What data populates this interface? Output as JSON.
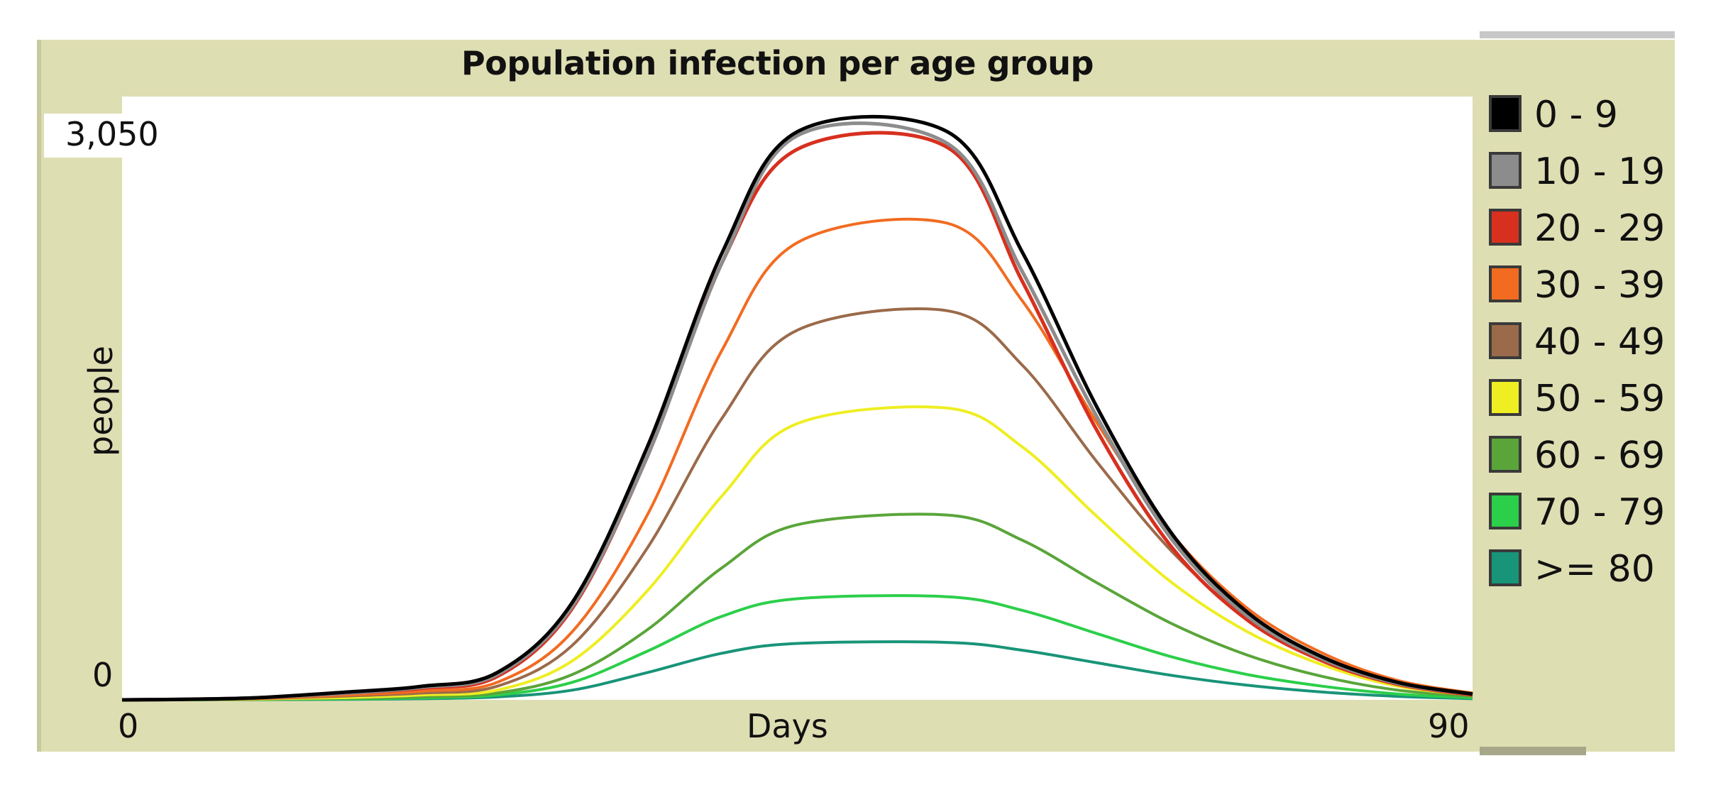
{
  "chart_data": {
    "type": "line",
    "title": "Population infection per age group",
    "xlabel": "Days",
    "ylabel": "people",
    "xlim": [
      0,
      90
    ],
    "ylim": [
      0,
      3050
    ],
    "x_tick_labels": [
      "0",
      "90"
    ],
    "y_tick_labels": [
      "3,050",
      "0"
    ],
    "legend_position": "right",
    "series": [
      {
        "name": "0 - 9",
        "color": "#000000",
        "points": [
          [
            0,
            0
          ],
          [
            8,
            8
          ],
          [
            15,
            40
          ],
          [
            20,
            70
          ],
          [
            25,
            140
          ],
          [
            30,
            500
          ],
          [
            35,
            1300
          ],
          [
            40,
            2300
          ],
          [
            45,
            2920
          ],
          [
            55,
            2920
          ],
          [
            60,
            2300
          ],
          [
            65,
            1500
          ],
          [
            70,
            850
          ],
          [
            75,
            450
          ],
          [
            80,
            220
          ],
          [
            85,
            90
          ],
          [
            90,
            30
          ]
        ]
      },
      {
        "name": "10 - 19",
        "color": "#8c8c8c",
        "points": [
          [
            0,
            0
          ],
          [
            8,
            8
          ],
          [
            15,
            35
          ],
          [
            20,
            65
          ],
          [
            25,
            130
          ],
          [
            30,
            480
          ],
          [
            35,
            1250
          ],
          [
            40,
            2250
          ],
          [
            45,
            2900
          ],
          [
            55,
            2860
          ],
          [
            60,
            2200
          ],
          [
            65,
            1450
          ],
          [
            70,
            820
          ],
          [
            75,
            430
          ],
          [
            80,
            210
          ],
          [
            85,
            85
          ],
          [
            90,
            30
          ]
        ]
      },
      {
        "name": "20 - 29",
        "color": "#d7301f",
        "points": [
          [
            0,
            0
          ],
          [
            8,
            8
          ],
          [
            15,
            35
          ],
          [
            20,
            60
          ],
          [
            25,
            120
          ],
          [
            30,
            470
          ],
          [
            35,
            1250
          ],
          [
            40,
            2250
          ],
          [
            45,
            2830
          ],
          [
            55,
            2840
          ],
          [
            60,
            2150
          ],
          [
            65,
            1380
          ],
          [
            70,
            780
          ],
          [
            75,
            410
          ],
          [
            80,
            200
          ],
          [
            85,
            80
          ],
          [
            90,
            25
          ]
        ]
      },
      {
        "name": "30 - 39",
        "color": "#f26b21",
        "points": [
          [
            0,
            0
          ],
          [
            8,
            5
          ],
          [
            15,
            25
          ],
          [
            20,
            45
          ],
          [
            25,
            90
          ],
          [
            30,
            350
          ],
          [
            35,
            950
          ],
          [
            40,
            1800
          ],
          [
            45,
            2350
          ],
          [
            55,
            2450
          ],
          [
            60,
            2050
          ],
          [
            65,
            1420
          ],
          [
            70,
            850
          ],
          [
            75,
            470
          ],
          [
            80,
            240
          ],
          [
            85,
            100
          ],
          [
            90,
            35
          ]
        ]
      },
      {
        "name": "40 - 49",
        "color": "#9b6a4a",
        "points": [
          [
            0,
            0
          ],
          [
            8,
            5
          ],
          [
            15,
            20
          ],
          [
            20,
            35
          ],
          [
            25,
            70
          ],
          [
            30,
            280
          ],
          [
            35,
            780
          ],
          [
            40,
            1450
          ],
          [
            45,
            1900
          ],
          [
            55,
            2000
          ],
          [
            60,
            1720
          ],
          [
            65,
            1220
          ],
          [
            70,
            760
          ],
          [
            75,
            420
          ],
          [
            80,
            220
          ],
          [
            85,
            90
          ],
          [
            90,
            30
          ]
        ]
      },
      {
        "name": "50 - 59",
        "color": "#eeee22",
        "points": [
          [
            0,
            0
          ],
          [
            8,
            3
          ],
          [
            15,
            12
          ],
          [
            20,
            25
          ],
          [
            25,
            50
          ],
          [
            30,
            200
          ],
          [
            35,
            560
          ],
          [
            40,
            1050
          ],
          [
            45,
            1420
          ],
          [
            55,
            1500
          ],
          [
            60,
            1300
          ],
          [
            65,
            940
          ],
          [
            70,
            600
          ],
          [
            75,
            350
          ],
          [
            80,
            180
          ],
          [
            85,
            70
          ],
          [
            90,
            25
          ]
        ]
      },
      {
        "name": "60 - 69",
        "color": "#5aa53a",
        "points": [
          [
            0,
            0
          ],
          [
            8,
            2
          ],
          [
            15,
            8
          ],
          [
            20,
            15
          ],
          [
            25,
            35
          ],
          [
            30,
            130
          ],
          [
            35,
            360
          ],
          [
            40,
            680
          ],
          [
            45,
            900
          ],
          [
            55,
            950
          ],
          [
            60,
            820
          ],
          [
            65,
            600
          ],
          [
            70,
            390
          ],
          [
            75,
            230
          ],
          [
            80,
            120
          ],
          [
            85,
            50
          ],
          [
            90,
            18
          ]
        ]
      },
      {
        "name": "70 - 79",
        "color": "#2ccf4a",
        "points": [
          [
            0,
            0
          ],
          [
            8,
            2
          ],
          [
            15,
            5
          ],
          [
            20,
            10
          ],
          [
            25,
            25
          ],
          [
            30,
            90
          ],
          [
            35,
            250
          ],
          [
            40,
            430
          ],
          [
            45,
            520
          ],
          [
            55,
            530
          ],
          [
            60,
            460
          ],
          [
            65,
            340
          ],
          [
            70,
            220
          ],
          [
            75,
            130
          ],
          [
            80,
            70
          ],
          [
            85,
            30
          ],
          [
            90,
            10
          ]
        ]
      },
      {
        "name": ">= 80",
        "color": "#189478",
        "points": [
          [
            0,
            0
          ],
          [
            8,
            1
          ],
          [
            15,
            3
          ],
          [
            20,
            6
          ],
          [
            25,
            15
          ],
          [
            30,
            50
          ],
          [
            35,
            140
          ],
          [
            40,
            240
          ],
          [
            45,
            290
          ],
          [
            55,
            295
          ],
          [
            60,
            255
          ],
          [
            65,
            190
          ],
          [
            70,
            125
          ],
          [
            75,
            75
          ],
          [
            80,
            40
          ],
          [
            85,
            18
          ],
          [
            90,
            6
          ]
        ]
      }
    ]
  }
}
